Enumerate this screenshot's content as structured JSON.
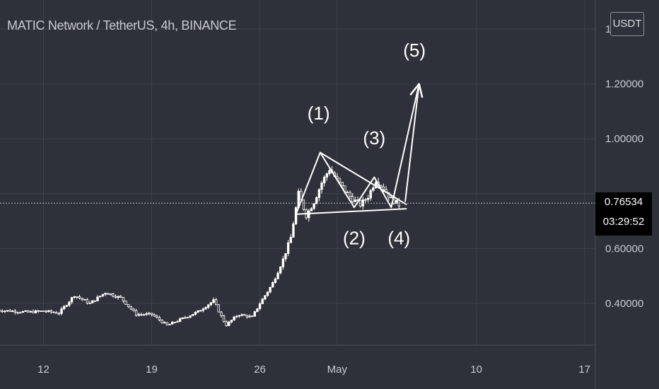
{
  "header": {
    "title": "MATIC Network / TetherUS, 4h, BINANCE",
    "currency": "USDT"
  },
  "price_tag": {
    "last_price": "0.76534",
    "countdown": "03:29:52"
  },
  "colors": {
    "background": "#2f313a",
    "grid": "#3d4049",
    "text": "#c9cbd1",
    "candle": "#ffffff",
    "annotation": "#ffffff"
  },
  "chart_data": {
    "type": "candlestick",
    "title": "MATIC Network / TetherUS, 4h, BINANCE",
    "interval": "4h",
    "y_axis": {
      "side": "right",
      "range": [
        0.25,
        1.38
      ],
      "tick_values": [
        0.4,
        0.6,
        1.0,
        1.2
      ],
      "tick_labels": [
        "0.40000",
        "0.60000",
        "1.00000",
        "1.20000"
      ],
      "last_price": 0.76534
    },
    "x_axis": {
      "tick_labels": [
        "12",
        "19",
        "26",
        "May",
        "10",
        "17"
      ],
      "tick_positions_days": [
        12,
        19,
        26,
        31,
        40,
        47
      ]
    },
    "grid": true,
    "price_path": [
      [
        9.0,
        0.375
      ],
      [
        10.0,
        0.372
      ],
      [
        11.0,
        0.368
      ],
      [
        12.0,
        0.372
      ],
      [
        13.0,
        0.365
      ],
      [
        14.0,
        0.43
      ],
      [
        15.0,
        0.4
      ],
      [
        16.0,
        0.44
      ],
      [
        17.0,
        0.42
      ],
      [
        18.0,
        0.36
      ],
      [
        19.0,
        0.36
      ],
      [
        20.0,
        0.32
      ],
      [
        21.0,
        0.345
      ],
      [
        22.0,
        0.37
      ],
      [
        23.0,
        0.41
      ],
      [
        23.8,
        0.32
      ],
      [
        24.6,
        0.36
      ],
      [
        25.5,
        0.35
      ],
      [
        26.0,
        0.4
      ],
      [
        26.8,
        0.47
      ],
      [
        27.5,
        0.56
      ],
      [
        28.0,
        0.64
      ],
      [
        28.5,
        0.8
      ],
      [
        29.0,
        0.72
      ],
      [
        29.5,
        0.77
      ],
      [
        30.0,
        0.84
      ],
      [
        30.5,
        0.89
      ],
      [
        31.0,
        0.85
      ],
      [
        31.5,
        0.81
      ],
      [
        32.0,
        0.78
      ],
      [
        32.5,
        0.76
      ],
      [
        33.0,
        0.79
      ],
      [
        33.5,
        0.85
      ],
      [
        34.0,
        0.82
      ],
      [
        34.5,
        0.78
      ],
      [
        35.0,
        0.76
      ]
    ],
    "annotations": {
      "wave_labels": [
        {
          "text": "(1)",
          "day": 29.8,
          "price": 1.07
        },
        {
          "text": "(2)",
          "day": 32.1,
          "price": 0.615
        },
        {
          "text": "(3)",
          "day": 33.4,
          "price": 0.98
        },
        {
          "text": "(4)",
          "day": 35.0,
          "price": 0.615
        },
        {
          "text": "(5)",
          "day": 36.0,
          "price": 1.3
        }
      ],
      "wave_path": [
        [
          28.3,
          0.72
        ],
        [
          29.9,
          0.95
        ],
        [
          32.1,
          0.75
        ],
        [
          33.4,
          0.86
        ],
        [
          34.5,
          0.75
        ],
        [
          36.3,
          1.2
        ]
      ],
      "triangle_upper": [
        [
          29.9,
          0.95
        ],
        [
          35.5,
          0.76
        ]
      ],
      "triangle_lower": [
        [
          28.3,
          0.725
        ],
        [
          35.5,
          0.745
        ]
      ]
    }
  }
}
